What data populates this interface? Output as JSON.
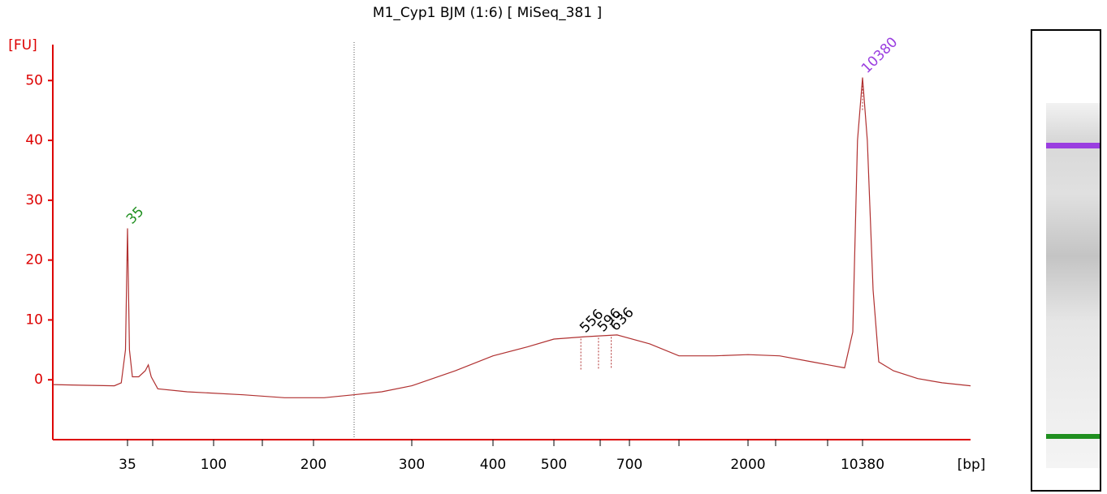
{
  "chart_data": {
    "type": "line",
    "title": "M1_Cyp1 BJM (1:6)  [ MiSeq_381 ]",
    "y_label": "[FU]",
    "x_label": "[bp]",
    "ylim": [
      -10,
      56
    ],
    "yticks": [
      0,
      10,
      20,
      30,
      40,
      50
    ],
    "xlim": [
      12,
      35000
    ],
    "xticks": [
      35,
      100,
      200,
      300,
      400,
      500,
      700,
      2000,
      10380
    ],
    "minor_xticks": [
      50,
      150,
      600,
      1000,
      3000,
      7000
    ],
    "axis_color": "#dd0000",
    "color": "#b03030",
    "x": [
      12,
      18,
      29,
      32,
      34,
      35,
      36,
      37.5,
      41,
      45,
      47,
      49,
      53,
      74,
      128,
      170,
      209,
      236,
      265,
      300,
      350,
      400,
      454,
      500,
      565,
      656,
      810,
      1000,
      1430,
      2000,
      3200,
      5440,
      8480,
      9300,
      9810,
      10380,
      10960,
      11690,
      12460,
      14700,
      19300,
      25400,
      35000
    ],
    "values": [
      -0.8,
      -0.9,
      -1,
      -0.5,
      5,
      25.3,
      5,
      0.5,
      0.5,
      1.5,
      2.5,
      0.5,
      -1.5,
      -2,
      -2.5,
      -3,
      -3,
      -2.5,
      -2,
      -1,
      1.5,
      4,
      5.5,
      6.8,
      7.2,
      7.5,
      6,
      4,
      4,
      4.2,
      4,
      3,
      2,
      8,
      40,
      50.5,
      40,
      15,
      3,
      1.5,
      0.2,
      -0.5,
      -1
    ],
    "peaks": [
      {
        "bp": 35,
        "color": "#1f8f1f"
      },
      {
        "bp": 556,
        "color": "#000000"
      },
      {
        "bp": 596,
        "color": "#000000"
      },
      {
        "bp": 636,
        "color": "#000000"
      },
      {
        "bp": 10380,
        "color": "#9a3ee0"
      }
    ]
  }
}
